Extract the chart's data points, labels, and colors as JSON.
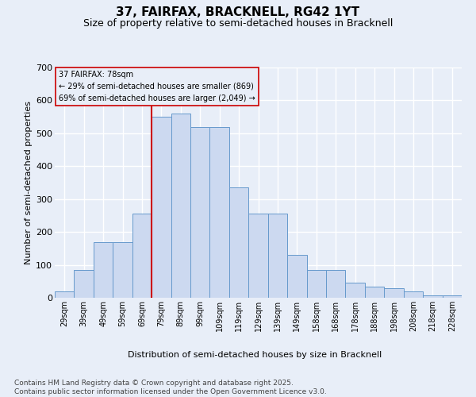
{
  "title_line1": "37, FAIRFAX, BRACKNELL, RG42 1YT",
  "title_line2": "Size of property relative to semi-detached houses in Bracknell",
  "xlabel": "Distribution of semi-detached houses by size in Bracknell",
  "ylabel": "Number of semi-detached properties",
  "annotation_line1": "37 FAIRFAX: 78sqm",
  "annotation_line2": "← 29% of semi-detached houses are smaller (869)",
  "annotation_line3": "69% of semi-detached houses are larger (2,049) →",
  "footer_line1": "Contains HM Land Registry data © Crown copyright and database right 2025.",
  "footer_line2": "Contains public sector information licensed under the Open Government Licence v3.0.",
  "categories": [
    "29sqm",
    "39sqm",
    "49sqm",
    "59sqm",
    "69sqm",
    "79sqm",
    "89sqm",
    "99sqm",
    "109sqm",
    "119sqm",
    "129sqm",
    "139sqm",
    "149sqm",
    "158sqm",
    "168sqm",
    "178sqm",
    "188sqm",
    "198sqm",
    "208sqm",
    "218sqm",
    "228sqm"
  ],
  "values": [
    20,
    85,
    170,
    170,
    255,
    550,
    560,
    520,
    520,
    335,
    255,
    255,
    130,
    85,
    85,
    45,
    35,
    30,
    20,
    8,
    8
  ],
  "bar_color": "#ccd9f0",
  "bar_edge_color": "#6699cc",
  "vline_x": 4.5,
  "vline_color": "#cc0000",
  "bg_color": "#e8eef8",
  "grid_color": "#ffffff",
  "ylim_max": 700,
  "yticks": [
    0,
    100,
    200,
    300,
    400,
    500,
    600,
    700
  ],
  "title_fontsize": 11,
  "subtitle_fontsize": 9,
  "ylabel_fontsize": 8,
  "xlabel_fontsize": 8,
  "tick_fontsize": 7,
  "annot_fontsize": 7,
  "footer_fontsize": 6.5
}
